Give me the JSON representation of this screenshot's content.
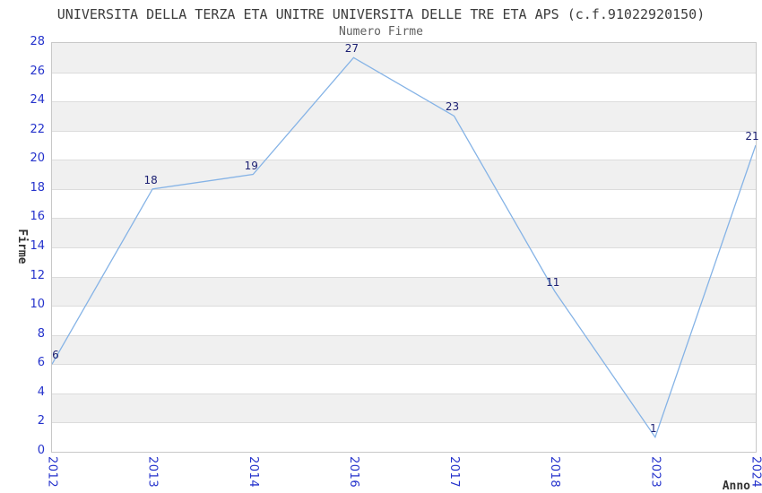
{
  "chart_data": {
    "type": "line",
    "title": "UNIVERSITA DELLA TERZA ETA UNITRE UNIVERSITA DELLE TRE ETA APS (c.f.91022920150)",
    "subtitle": "Numero Firme",
    "xlabel": "Anno",
    "ylabel": "Firme",
    "categories": [
      "2012",
      "2013",
      "2014",
      "2016",
      "2017",
      "2018",
      "2023",
      "2024"
    ],
    "series": [
      {
        "name": "Numero Firme",
        "values": [
          6,
          18,
          19,
          27,
          23,
          11,
          1,
          21
        ]
      }
    ],
    "ylim": [
      0,
      28
    ],
    "ytick_step": 2,
    "grid": "horizontal-alternating-bands",
    "legend": "none",
    "colors": {
      "line": "#85b3e6",
      "tick_label": "#2432cc",
      "data_label": "#1d2173",
      "band_fill": "#f0f0f0",
      "grid_line": "#dcdcdc",
      "plot_border": "#c8c8c8",
      "title": "#3c3c3c",
      "subtitle": "#5f5f5f",
      "axis_label": "#333333"
    }
  }
}
